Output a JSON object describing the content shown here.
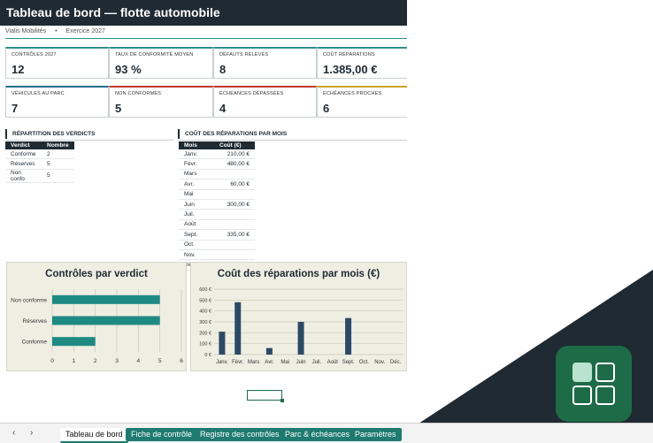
{
  "header": {
    "title": "Tableau de bord — flotte automobile",
    "company": "Vialis Mobilités",
    "separator": "•",
    "fiscal_year": "Exercice 2027"
  },
  "kpis_row1": [
    {
      "label": "CONTRÔLES 2027",
      "value": "12",
      "color": "#2f8f8a"
    },
    {
      "label": "TAUX DE CONFORMITÉ MOYEN",
      "value": "93 %",
      "color": "#2f8f8a"
    },
    {
      "label": "DÉFAUTS RELEVÉS",
      "value": "8",
      "color": "#2f8f8a"
    },
    {
      "label": "COÛT RÉPARATIONS",
      "value": "1.385,00 €",
      "color": "#2f8f8a"
    }
  ],
  "kpis_row2": [
    {
      "label": "VÉHICULES AU PARC",
      "value": "7",
      "color": "#1f6e8c"
    },
    {
      "label": "NON CONFORMES",
      "value": "5",
      "color": "#c0392b"
    },
    {
      "label": "ÉCHÉANCES DÉPASSÉES",
      "value": "4",
      "color": "#c0392b"
    },
    {
      "label": "ÉCHÉANCES PROCHES",
      "value": "6",
      "color": "#c9a227"
    }
  ],
  "verdicts": {
    "section_title": "RÉPARTITION DES VERDICTS",
    "columns": [
      "Verdict",
      "Nombre"
    ],
    "rows": [
      {
        "verdict": "Conforme",
        "count": "2"
      },
      {
        "verdict": "Réserves",
        "count": "5"
      },
      {
        "verdict": "Non confo",
        "count": "5"
      }
    ]
  },
  "costs": {
    "section_title": "COÛT DES RÉPARATIONS PAR MOIS",
    "columns": [
      "Mois",
      "Coût (€)"
    ],
    "rows": [
      {
        "month": "Janv.",
        "cost": "210,00 €"
      },
      {
        "month": "Févr.",
        "cost": "480,00 €"
      },
      {
        "month": "Mars",
        "cost": ""
      },
      {
        "month": "Avr.",
        "cost": "60,00 €"
      },
      {
        "month": "Mai",
        "cost": ""
      },
      {
        "month": "Juin",
        "cost": "300,00 €"
      },
      {
        "month": "Juil.",
        "cost": ""
      },
      {
        "month": "Août",
        "cost": ""
      },
      {
        "month": "Sept.",
        "cost": "335,00 €"
      },
      {
        "month": "Oct.",
        "cost": ""
      },
      {
        "month": "Nov.",
        "cost": ""
      },
      {
        "month": "Déc.",
        "cost": ""
      }
    ]
  },
  "chart_data": [
    {
      "type": "bar",
      "orientation": "horizontal",
      "title": "Contrôles par verdict",
      "categories": [
        "Non conforme",
        "Réserves",
        "Conforme"
      ],
      "values": [
        5,
        5,
        2
      ],
      "xlim": [
        0,
        6
      ],
      "xticks": [
        "0",
        "1",
        "2",
        "3",
        "4",
        "5",
        "6"
      ],
      "grid": true,
      "color": "#1f8a84"
    },
    {
      "type": "bar",
      "title": "Coût des réparations par mois (€)",
      "categories": [
        "Janv.",
        "Févr.",
        "Mars",
        "Avr.",
        "Mai",
        "Juin",
        "Juil.",
        "Août",
        "Sept.",
        "Oct.",
        "Nov.",
        "Déc."
      ],
      "values": [
        210,
        480,
        0,
        60,
        0,
        300,
        0,
        0,
        335,
        0,
        0,
        0
      ],
      "ylim": [
        0,
        600
      ],
      "yticks": [
        "0 €",
        "100 €",
        "200 €",
        "300 €",
        "400 €",
        "500 €",
        "600 €"
      ],
      "grid": true,
      "color": "#2b4a66"
    }
  ],
  "tabs": [
    {
      "label": "Tableau de bord",
      "active": true
    },
    {
      "label": "Fiche de contrôle",
      "active": false
    },
    {
      "label": "Registre des contrôles",
      "active": false
    },
    {
      "label": "Parc & échéances",
      "active": false
    },
    {
      "label": "Paramètres",
      "active": false
    }
  ],
  "nav": {
    "prev": "‹",
    "next": "›"
  },
  "colors": {
    "dark": "#1f2a33",
    "accent": "#1d6b47",
    "chart_bg": "#efeee2"
  }
}
